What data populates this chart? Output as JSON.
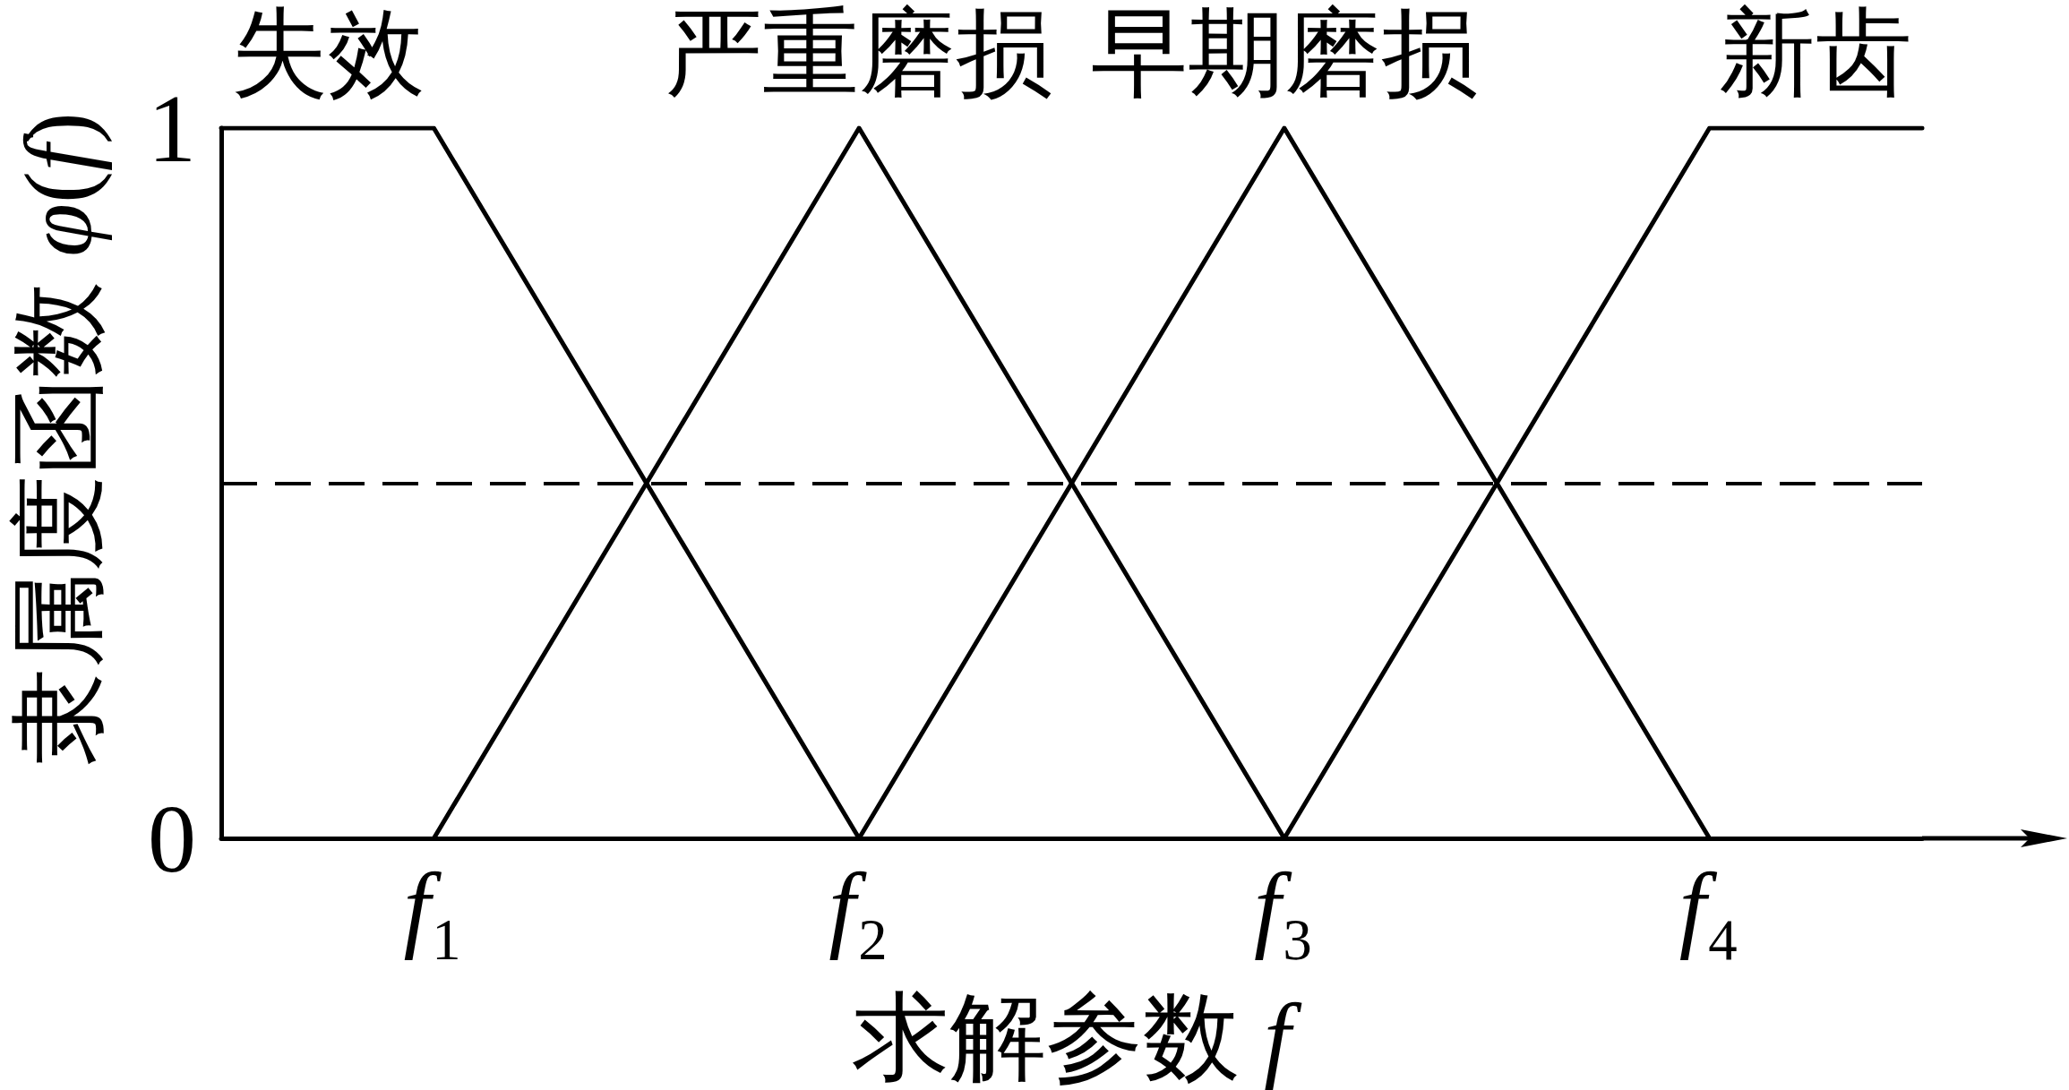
{
  "chart_data": {
    "type": "line",
    "xlabel": "求解参数 f",
    "ylabel": "隶属度函数 φ(f)",
    "categories": [
      null,
      "f₁",
      null,
      "f₂",
      null,
      "f₃",
      null,
      "f₄",
      null
    ],
    "ylim": [
      0,
      1
    ],
    "yticks": [
      0,
      1
    ],
    "marker": "none",
    "line_style": "solid",
    "series": [
      {
        "name": "失效",
        "color": "#000000",
        "values": [
          1,
          1,
          0.5,
          0,
          null,
          null,
          null,
          null,
          null
        ]
      },
      {
        "name": "严重磨损",
        "color": "#000000",
        "values": [
          null,
          0,
          0.5,
          1,
          0.5,
          0,
          null,
          null,
          null
        ]
      },
      {
        "name": "早期磨损",
        "color": "#000000",
        "values": [
          null,
          null,
          null,
          0,
          0.5,
          1,
          0.5,
          0,
          null
        ]
      },
      {
        "name": "新齿",
        "color": "#000000",
        "values": [
          null,
          null,
          null,
          null,
          null,
          0,
          0.5,
          1,
          1
        ]
      }
    ],
    "ref_lines": [
      {
        "axis": "y",
        "value": 0.5,
        "color": "#000000",
        "line_style": "dashed"
      }
    ]
  }
}
